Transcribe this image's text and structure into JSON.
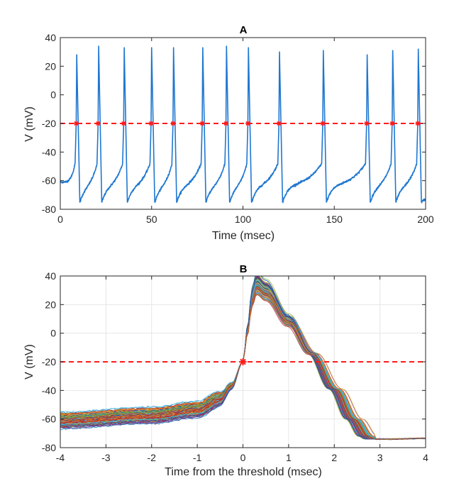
{
  "chart_data": [
    {
      "type": "line",
      "title": "A",
      "xlabel": "Time (msec)",
      "ylabel": "V (mV)",
      "xlim": [
        0,
        200
      ],
      "ylim": [
        -80,
        40
      ],
      "xticks": [
        0,
        50,
        100,
        150,
        200
      ],
      "yticks": [
        -80,
        -60,
        -40,
        -20,
        0,
        20,
        40
      ],
      "grid": false,
      "threshold": -20,
      "trace_color": "#1f77d0",
      "threshold_color": "#ff1a1a",
      "spike_times": [
        9,
        21,
        35,
        50,
        62,
        78,
        91,
        103,
        120,
        144,
        168,
        182,
        196
      ],
      "spike_peaks": [
        28,
        34,
        33,
        33,
        33,
        33,
        34,
        33,
        30,
        31,
        28,
        31,
        32
      ],
      "trace_start": {
        "t": 0,
        "v": -61
      },
      "trace_end": {
        "t": 200,
        "v": -73
      }
    },
    {
      "type": "line",
      "title": "B",
      "xlabel": "Time from the threshold (msec)",
      "ylabel": "V (mV)",
      "xlim": [
        -4,
        4
      ],
      "ylim": [
        -80,
        40
      ],
      "xticks": [
        -4,
        -3,
        -2,
        -1,
        0,
        1,
        2,
        3,
        4
      ],
      "yticks": [
        -80,
        -60,
        -40,
        -20,
        0,
        20,
        40
      ],
      "grid": true,
      "threshold": -20,
      "threshold_marker": {
        "t": 0,
        "v": -20
      },
      "threshold_color": "#ff1a1a",
      "n_traces": 170,
      "waveform": {
        "t": [
          -4,
          -2,
          -1,
          -0.5,
          -0.25,
          0,
          0.1,
          0.2,
          0.3,
          0.5,
          1.0,
          1.5,
          2.0,
          2.4,
          2.7,
          2.85,
          3.2,
          4
        ],
        "v": [
          -61,
          -57.5,
          -53.5,
          -46,
          -37,
          -20,
          2,
          25,
          35,
          30,
          9,
          -14,
          -39,
          -60,
          -72,
          -74,
          -74,
          -73.5
        ]
      },
      "palette": [
        "#0072bd",
        "#d95319",
        "#edb120",
        "#7e2f8e",
        "#77ac30",
        "#4dbeee",
        "#a2142f"
      ]
    }
  ]
}
